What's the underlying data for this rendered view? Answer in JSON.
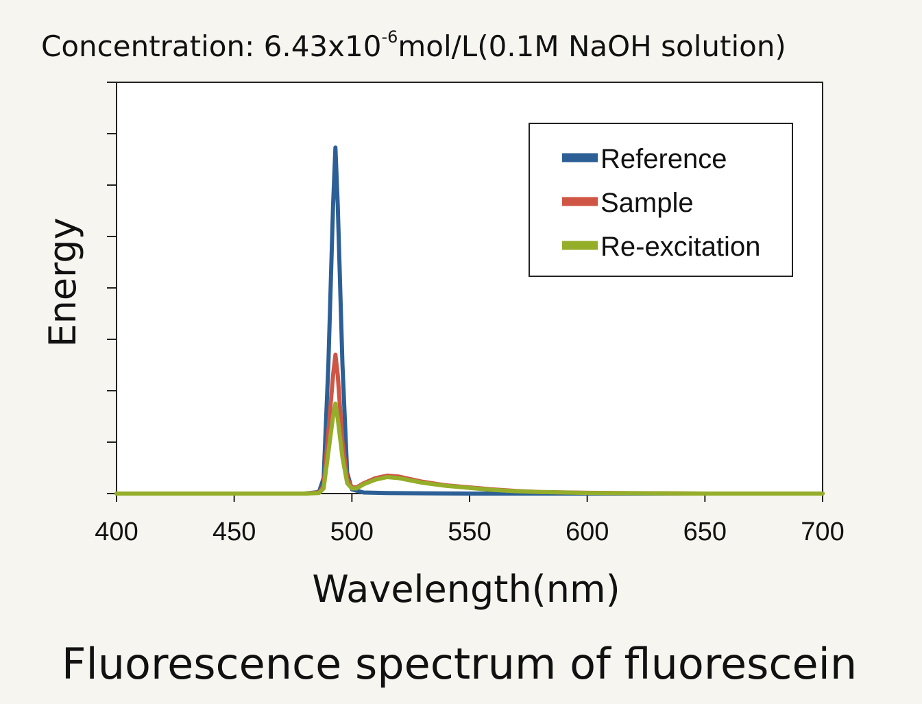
{
  "chart_data": {
    "type": "line",
    "subtitle_prefix": "Concentration: 6.43x10",
    "subtitle_exponent": "-6",
    "subtitle_suffix": "mol/L(0.1M NaOH solution)",
    "title": "Fluorescence spectrum of fluorescein",
    "xlabel": "Wavelength(nm)",
    "ylabel": "Energy",
    "xlim": [
      400,
      700
    ],
    "ylim": [
      0,
      8
    ],
    "x_ticks": [
      400,
      450,
      500,
      550,
      600,
      650,
      700
    ],
    "x_tick_labels": [
      "400",
      "450",
      "500",
      "550",
      "600",
      "650",
      "700"
    ],
    "y_ticks": [
      0,
      1,
      2,
      3,
      4,
      5,
      6,
      7,
      8
    ],
    "grid": false,
    "legend_position": "top-right",
    "series": [
      {
        "name": "Reference",
        "color": "#2c5f96",
        "x": [
          400,
          480,
          486,
          488,
          490,
          492,
          493,
          494,
          496,
          498,
          500,
          505,
          515,
          530,
          550,
          570,
          600,
          650,
          700
        ],
        "y": [
          0,
          0,
          0.03,
          0.3,
          2.5,
          5.6,
          6.73,
          5.6,
          2.5,
          0.4,
          0.08,
          0.02,
          0.01,
          0.005,
          0,
          0,
          0,
          0,
          0
        ]
      },
      {
        "name": "Sample",
        "color": "#cf5544",
        "x": [
          400,
          480,
          486,
          488,
          490,
          492,
          493,
          494,
          496,
          498,
          500,
          502,
          505,
          510,
          515,
          520,
          530,
          540,
          550,
          560,
          570,
          580,
          600,
          620,
          650,
          700
        ],
        "y": [
          0,
          0,
          0.02,
          0.15,
          1.2,
          2.3,
          2.7,
          2.3,
          1.0,
          0.3,
          0.12,
          0.12,
          0.2,
          0.3,
          0.35,
          0.33,
          0.23,
          0.16,
          0.12,
          0.08,
          0.05,
          0.03,
          0.015,
          0.008,
          0,
          0
        ]
      },
      {
        "name": "Re-excitation",
        "color": "#95ae2a",
        "x": [
          400,
          480,
          486,
          488,
          490,
          492,
          493,
          494,
          496,
          498,
          500,
          502,
          505,
          510,
          515,
          520,
          530,
          540,
          550,
          560,
          570,
          580,
          600,
          620,
          650,
          700
        ],
        "y": [
          0,
          0,
          0.01,
          0.1,
          0.8,
          1.5,
          1.75,
          1.45,
          0.7,
          0.2,
          0.1,
          0.1,
          0.18,
          0.27,
          0.32,
          0.3,
          0.21,
          0.15,
          0.11,
          0.07,
          0.045,
          0.03,
          0.012,
          0.006,
          0,
          0
        ]
      }
    ]
  }
}
